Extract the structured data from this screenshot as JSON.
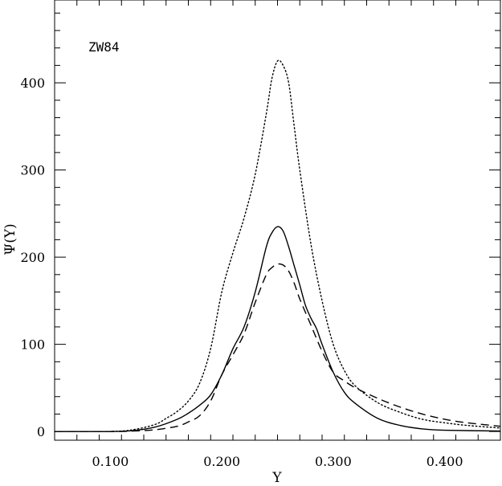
{
  "chart_data": {
    "type": "line",
    "title": "",
    "annotation": "ZW84",
    "xlabel": "Y",
    "ylabel": "Ψ(Y)",
    "xlim": [
      0.05,
      0.45
    ],
    "ylim": [
      -10,
      495
    ],
    "xticks": [
      {
        "value": 0.1,
        "label": "0.100"
      },
      {
        "value": 0.2,
        "label": "0.200"
      },
      {
        "value": 0.3,
        "label": "0.300"
      },
      {
        "value": 0.4,
        "label": "0.400"
      }
    ],
    "yticks": [
      {
        "value": 0,
        "label": "0"
      },
      {
        "value": 100,
        "label": "100"
      },
      {
        "value": 200,
        "label": "200"
      },
      {
        "value": 300,
        "label": "300"
      },
      {
        "value": 400,
        "label": "400"
      }
    ],
    "grid": false,
    "series": [
      {
        "style": "solid",
        "color": "#000000",
        "x": [
          0.05,
          0.1,
          0.12,
          0.14,
          0.16,
          0.17,
          0.18,
          0.19,
          0.2,
          0.21,
          0.22,
          0.23,
          0.24,
          0.245,
          0.25,
          0.255,
          0.26,
          0.265,
          0.27,
          0.275,
          0.28,
          0.285,
          0.29,
          0.3,
          0.31,
          0.32,
          0.34,
          0.36,
          0.38,
          0.4,
          0.45
        ],
        "y": [
          0,
          0,
          1,
          5,
          14,
          21,
          30,
          42,
          65,
          95,
          120,
          160,
          212,
          228,
          235,
          230,
          212,
          190,
          168,
          145,
          130,
          118,
          100,
          68,
          45,
          32,
          15,
          7,
          3,
          1.5,
          0.5
        ]
      },
      {
        "style": "dashed",
        "color": "#000000",
        "x": [
          0.05,
          0.1,
          0.12,
          0.14,
          0.16,
          0.17,
          0.18,
          0.19,
          0.2,
          0.21,
          0.22,
          0.23,
          0.24,
          0.245,
          0.25,
          0.255,
          0.26,
          0.265,
          0.27,
          0.28,
          0.29,
          0.3,
          0.31,
          0.32,
          0.34,
          0.36,
          0.38,
          0.4,
          0.42,
          0.45
        ],
        "y": [
          0,
          0,
          0.5,
          2,
          6,
          11,
          18,
          35,
          65,
          88,
          112,
          148,
          180,
          188,
          192,
          191,
          184,
          170,
          152,
          122,
          92,
          68,
          58,
          50,
          38,
          28,
          20,
          14,
          10,
          6
        ]
      },
      {
        "style": "dotted",
        "color": "#000000",
        "x": [
          0.05,
          0.1,
          0.12,
          0.14,
          0.15,
          0.16,
          0.17,
          0.18,
          0.19,
          0.2,
          0.21,
          0.22,
          0.23,
          0.24,
          0.245,
          0.25,
          0.255,
          0.26,
          0.265,
          0.27,
          0.28,
          0.29,
          0.3,
          0.31,
          0.32,
          0.34,
          0.36,
          0.38,
          0.4,
          0.42,
          0.45
        ],
        "y": [
          0,
          0,
          2,
          8,
          15,
          23,
          35,
          55,
          95,
          160,
          205,
          245,
          295,
          365,
          405,
          425,
          420,
          400,
          350,
          300,
          215,
          150,
          100,
          70,
          52,
          33,
          22,
          14,
          10,
          7,
          4
        ]
      }
    ]
  }
}
